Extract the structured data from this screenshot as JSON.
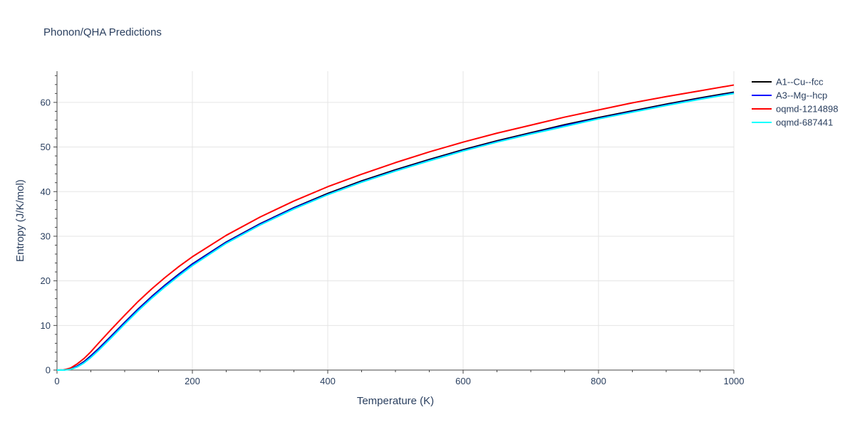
{
  "chart_data": {
    "type": "line",
    "title": "Phonon/QHA Predictions",
    "xlabel": "Temperature (K)",
    "ylabel": "Entropy (J/K/mol)",
    "xlim": [
      0,
      1000
    ],
    "ylim": [
      0,
      67
    ],
    "x_ticks": [
      0,
      200,
      400,
      600,
      800,
      1000
    ],
    "y_ticks": [
      0,
      10,
      20,
      30,
      40,
      50,
      60
    ],
    "grid": true,
    "legend_position": "top-right",
    "x": [
      0,
      10,
      20,
      30,
      40,
      50,
      60,
      80,
      100,
      120,
      140,
      160,
      180,
      200,
      250,
      300,
      350,
      400,
      450,
      500,
      550,
      600,
      650,
      700,
      750,
      800,
      850,
      900,
      950,
      1000
    ],
    "series": [
      {
        "name": "A1--Cu--fcc",
        "color": "#000000",
        "values": [
          0,
          0.02,
          0.25,
          0.9,
          1.9,
          3.2,
          4.6,
          7.6,
          10.7,
          13.7,
          16.5,
          19.1,
          21.5,
          23.8,
          28.7,
          32.8,
          36.4,
          39.6,
          42.4,
          44.9,
          47.2,
          49.4,
          51.4,
          53.2,
          55.0,
          56.6,
          58.1,
          59.6,
          61.0,
          62.3
        ]
      },
      {
        "name": "A3--Mg--hcp",
        "color": "#0000ff",
        "values": [
          0,
          0.02,
          0.22,
          0.85,
          1.8,
          3.1,
          4.5,
          7.5,
          10.6,
          13.6,
          16.4,
          19.0,
          21.4,
          23.7,
          28.6,
          32.7,
          36.3,
          39.4,
          42.2,
          44.7,
          47.0,
          49.2,
          51.2,
          53.0,
          54.8,
          56.4,
          57.9,
          59.4,
          60.8,
          62.1
        ]
      },
      {
        "name": "oqmd-1214898",
        "color": "#ff0000",
        "values": [
          0,
          0.05,
          0.45,
          1.4,
          2.6,
          4.1,
          5.8,
          9.1,
          12.3,
          15.4,
          18.2,
          20.8,
          23.2,
          25.4,
          30.2,
          34.3,
          37.9,
          41.1,
          43.9,
          46.5,
          48.9,
          51.1,
          53.1,
          54.9,
          56.7,
          58.3,
          59.9,
          61.3,
          62.6,
          63.9
        ]
      },
      {
        "name": "oqmd-687441",
        "color": "#00ffff",
        "values": [
          0,
          0.01,
          0.15,
          0.7,
          1.6,
          2.8,
          4.2,
          7.2,
          10.3,
          13.3,
          16.1,
          18.7,
          21.1,
          23.4,
          28.4,
          32.5,
          36.1,
          39.3,
          42.1,
          44.6,
          46.9,
          49.1,
          51.1,
          52.9,
          54.6,
          56.3,
          57.8,
          59.3,
          60.7,
          62.0
        ]
      }
    ]
  }
}
